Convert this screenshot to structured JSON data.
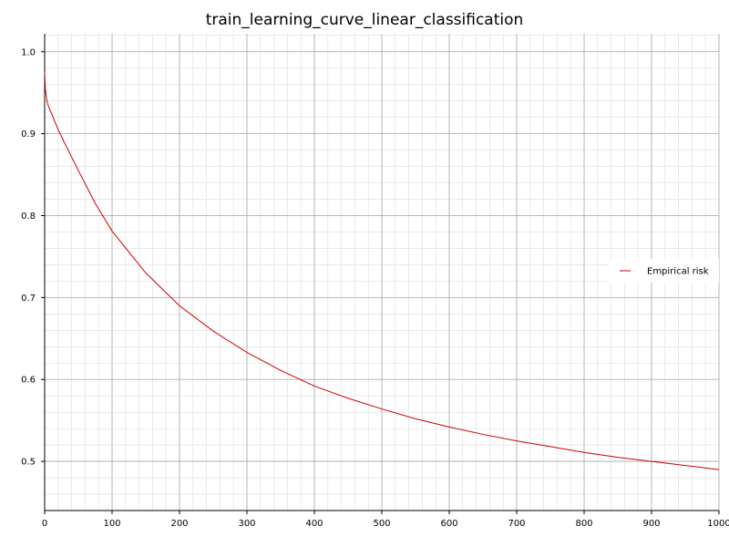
{
  "chart_data": {
    "type": "line",
    "title": "train_learning_curve_linear_classification",
    "xlabel": "",
    "ylabel": "",
    "xlim": [
      0,
      1000
    ],
    "ylim": [
      0.44,
      1.022
    ],
    "x_ticks": [
      "0",
      "100",
      "200",
      "300",
      "400",
      "500",
      "600",
      "700",
      "800",
      "900",
      "1000"
    ],
    "y_ticks": [
      "0.5",
      "0.6",
      "0.7",
      "0.8",
      "0.9",
      "1.0"
    ],
    "grid": true,
    "minor_grid": true,
    "legend": {
      "placement": "right",
      "entries": [
        "Empirical risk"
      ]
    },
    "series": [
      {
        "name": "Empirical risk",
        "color": "#cc0000",
        "x": [
          0,
          1,
          3,
          5,
          10,
          20,
          30,
          50,
          75,
          100,
          150,
          200,
          250,
          300,
          350,
          400,
          450,
          500,
          550,
          600,
          650,
          700,
          750,
          800,
          850,
          900,
          950,
          1000
        ],
        "y": [
          0.975,
          0.955,
          0.942,
          0.935,
          0.925,
          0.905,
          0.888,
          0.855,
          0.815,
          0.781,
          0.73,
          0.69,
          0.659,
          0.633,
          0.611,
          0.592,
          0.577,
          0.564,
          0.552,
          0.542,
          0.533,
          0.525,
          0.518,
          0.511,
          0.505,
          0.5,
          0.495,
          0.49
        ]
      }
    ]
  }
}
